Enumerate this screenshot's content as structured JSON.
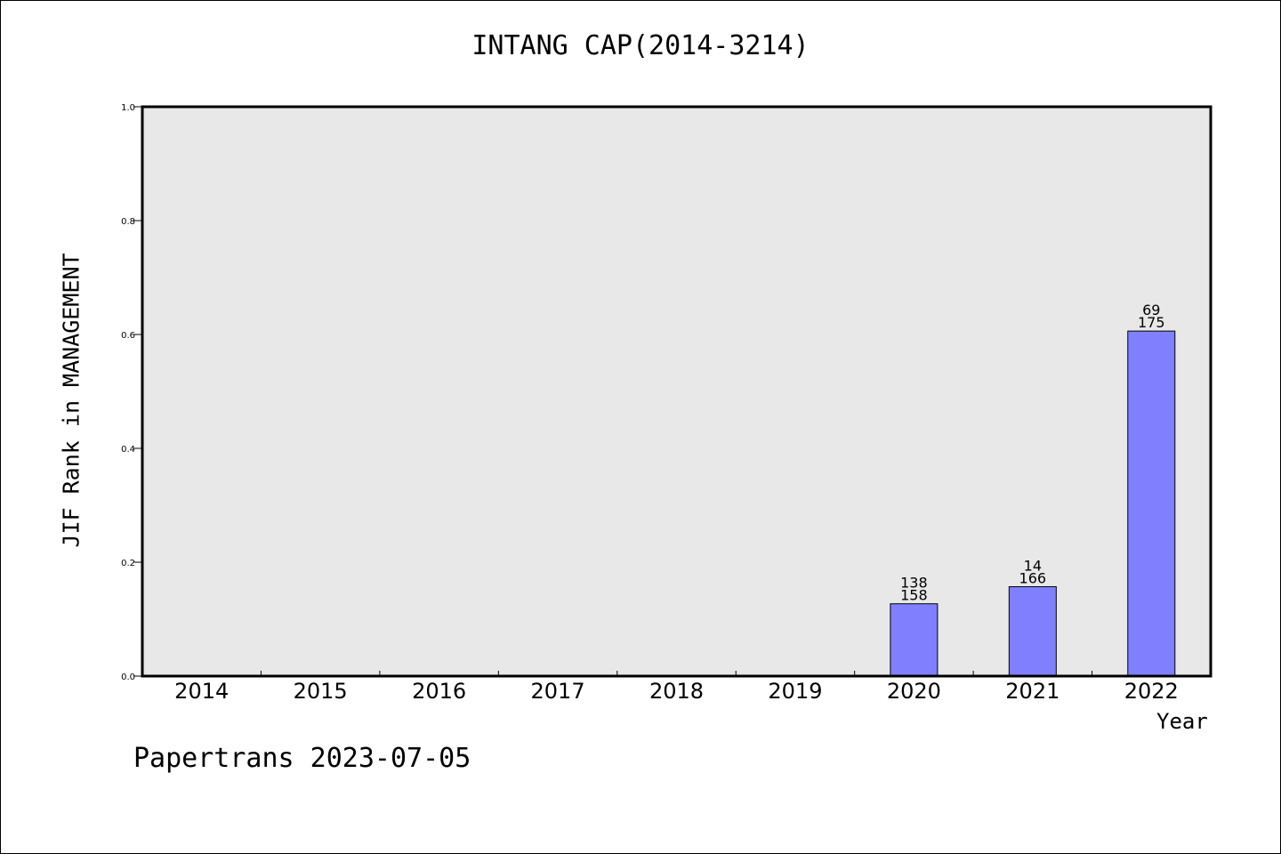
{
  "chart_data": {
    "type": "bar",
    "title": "INTANG CAP(2014-3214)",
    "xlabel": "Year",
    "ylabel": "JIF Rank in MANAGEMENT",
    "ylim": [
      0,
      1.0
    ],
    "yticks": [
      "0.0",
      "0.2",
      "0.4",
      "0.6",
      "0.8",
      "1.0"
    ],
    "categories": [
      "2014",
      "2015",
      "2016",
      "2017",
      "2018",
      "2019",
      "2020",
      "2021",
      "2022"
    ],
    "values": [
      0,
      0,
      0,
      0,
      0,
      0,
      0.127,
      0.157,
      0.606
    ],
    "labels": [
      {
        "category": "2020",
        "top": "138",
        "bottom": "158"
      },
      {
        "category": "2021",
        "top": "14",
        "bottom": "166"
      },
      {
        "category": "2022",
        "top": "69",
        "bottom": "175"
      }
    ],
    "grid": false,
    "colors": {
      "bar": "#8080ff",
      "plot_bg": "#e8e8e8"
    }
  },
  "footer": "Papertrans 2023-07-05"
}
